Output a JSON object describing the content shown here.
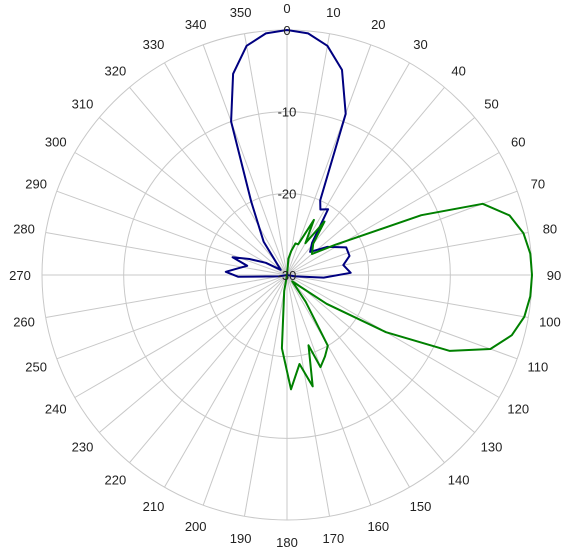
{
  "chart_data": {
    "type": "line",
    "subtype": "polar",
    "title": "",
    "angle_ticks": [
      "0",
      "10",
      "20",
      "30",
      "40",
      "50",
      "60",
      "70",
      "80",
      "90",
      "100",
      "110",
      "120",
      "130",
      "140",
      "150",
      "160",
      "170",
      "180",
      "190",
      "200",
      "210",
      "220",
      "230",
      "240",
      "250",
      "260",
      "270",
      "280",
      "290",
      "300",
      "310",
      "320",
      "330",
      "340",
      "350"
    ],
    "radial_ticks": [
      "-30",
      "-20",
      "-10",
      "0"
    ],
    "r_range": [
      -30,
      0
    ],
    "grid": true,
    "legend": "none",
    "series": [
      {
        "color": "#000080",
        "points": [
          {
            "angle": 0,
            "value": 0
          },
          {
            "angle": 5,
            "value": -0.3
          },
          {
            "angle": 10,
            "value": -1.5
          },
          {
            "angle": 15,
            "value": -4
          },
          {
            "angle": 20,
            "value": -9
          },
          {
            "angle": 24,
            "value": -20
          },
          {
            "angle": 27,
            "value": -21
          },
          {
            "angle": 32,
            "value": -20.5
          },
          {
            "angle": 38,
            "value": -25
          },
          {
            "angle": 45,
            "value": -26
          },
          {
            "angle": 55,
            "value": -24
          },
          {
            "angle": 65,
            "value": -22
          },
          {
            "angle": 73,
            "value": -22
          },
          {
            "angle": 80,
            "value": -23
          },
          {
            "angle": 88,
            "value": -22.2
          },
          {
            "angle": 94,
            "value": -25.5
          },
          {
            "angle": 100,
            "value": -29
          },
          {
            "angle": 110,
            "value": -30
          },
          {
            "angle": 250,
            "value": -30
          },
          {
            "angle": 260,
            "value": -29
          },
          {
            "angle": 268,
            "value": -24
          },
          {
            "angle": 273,
            "value": -22.5
          },
          {
            "angle": 278,
            "value": -24
          },
          {
            "angle": 283,
            "value": -25
          },
          {
            "angle": 288,
            "value": -23
          },
          {
            "angle": 293,
            "value": -25
          },
          {
            "angle": 300,
            "value": -27
          },
          {
            "angle": 310,
            "value": -29
          },
          {
            "angle": 325,
            "value": -25
          },
          {
            "angle": 334,
            "value": -20
          },
          {
            "angle": 340,
            "value": -10
          },
          {
            "angle": 345,
            "value": -4.5
          },
          {
            "angle": 350,
            "value": -1.5
          },
          {
            "angle": 355,
            "value": -0.3
          },
          {
            "angle": 360,
            "value": 0
          }
        ]
      },
      {
        "color": "#008000",
        "points": [
          {
            "angle": 0,
            "value": -30
          },
          {
            "angle": 5,
            "value": -28
          },
          {
            "angle": 10,
            "value": -27
          },
          {
            "angle": 15,
            "value": -26
          },
          {
            "angle": 20,
            "value": -26
          },
          {
            "angle": 26,
            "value": -22.5
          },
          {
            "angle": 30,
            "value": -25.5
          },
          {
            "angle": 35,
            "value": -22
          },
          {
            "angle": 40,
            "value": -25
          },
          {
            "angle": 50,
            "value": -26
          },
          {
            "angle": 58,
            "value": -23
          },
          {
            "angle": 66,
            "value": -12
          },
          {
            "angle": 70,
            "value": -4.5
          },
          {
            "angle": 75,
            "value": -1.8
          },
          {
            "angle": 80,
            "value": -0.6
          },
          {
            "angle": 85,
            "value": -0.1
          },
          {
            "angle": 90,
            "value": 0
          },
          {
            "angle": 95,
            "value": -0.1
          },
          {
            "angle": 100,
            "value": -0.5
          },
          {
            "angle": 105,
            "value": -1.5
          },
          {
            "angle": 110,
            "value": -3.5
          },
          {
            "angle": 115,
            "value": -8
          },
          {
            "angle": 120,
            "value": -16
          },
          {
            "angle": 126,
            "value": -24
          },
          {
            "angle": 132,
            "value": -28
          },
          {
            "angle": 140,
            "value": -29
          },
          {
            "angle": 145,
            "value": -26
          },
          {
            "angle": 150,
            "value": -20
          },
          {
            "angle": 155,
            "value": -19
          },
          {
            "angle": 160,
            "value": -18
          },
          {
            "angle": 163,
            "value": -21
          },
          {
            "angle": 167,
            "value": -16
          },
          {
            "angle": 172,
            "value": -19
          },
          {
            "angle": 178,
            "value": -16
          },
          {
            "angle": 184,
            "value": -21
          },
          {
            "angle": 190,
            "value": -28
          },
          {
            "angle": 200,
            "value": -30
          },
          {
            "angle": 350,
            "value": -30
          },
          {
            "angle": 360,
            "value": -30
          }
        ]
      }
    ]
  }
}
